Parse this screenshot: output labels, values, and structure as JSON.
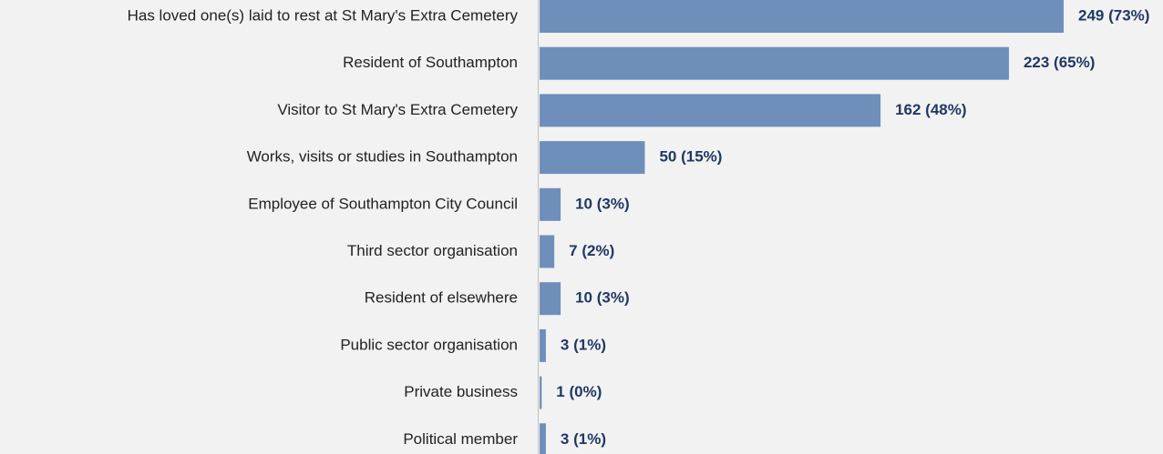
{
  "chart_data": {
    "type": "bar",
    "orientation": "horizontal",
    "categories": [
      "Has loved one(s) laid to rest at St Mary's Extra Cemetery",
      "Resident of Southampton",
      "Visitor to St Mary's Extra Cemetery",
      "Works, visits or studies in Southampton",
      "Employee of Southampton City Council",
      "Third sector organisation",
      "Resident of elsewhere",
      "Public sector organisation",
      "Private business",
      "Political member"
    ],
    "values": [
      249,
      223,
      162,
      50,
      10,
      7,
      10,
      3,
      1,
      3
    ],
    "value_labels": [
      "249 (73%)",
      "223 (65%)",
      "162 (48%)",
      "50 (15%)",
      "10 (3%)",
      "7 (2%)",
      "10 (3%)",
      "3 (1%)",
      "1 (0%)",
      "3 (1%)"
    ],
    "color": "#6f8fbb"
  }
}
